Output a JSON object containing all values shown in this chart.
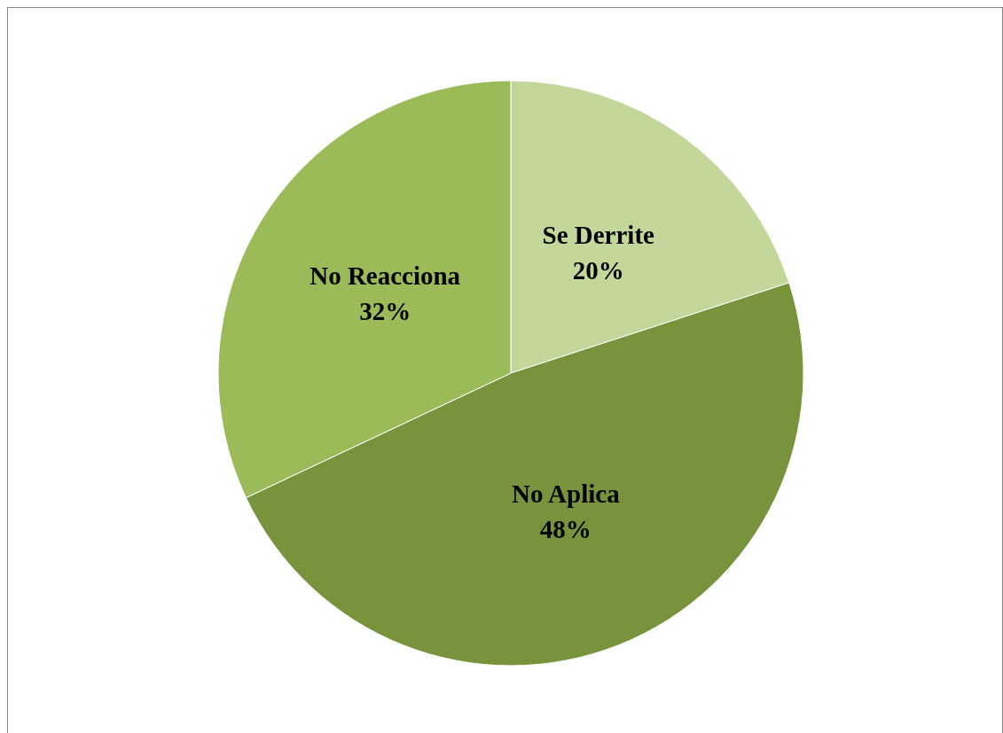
{
  "chart_data": {
    "type": "pie",
    "categories": [
      "Se Derrite",
      "No Aplica",
      "No Reacciona"
    ],
    "values": [
      20,
      48,
      32
    ],
    "value_labels": [
      "20%",
      "48%",
      "32%"
    ],
    "colors": [
      "#c4d79b",
      "#77933c",
      "#9bbb59"
    ]
  }
}
